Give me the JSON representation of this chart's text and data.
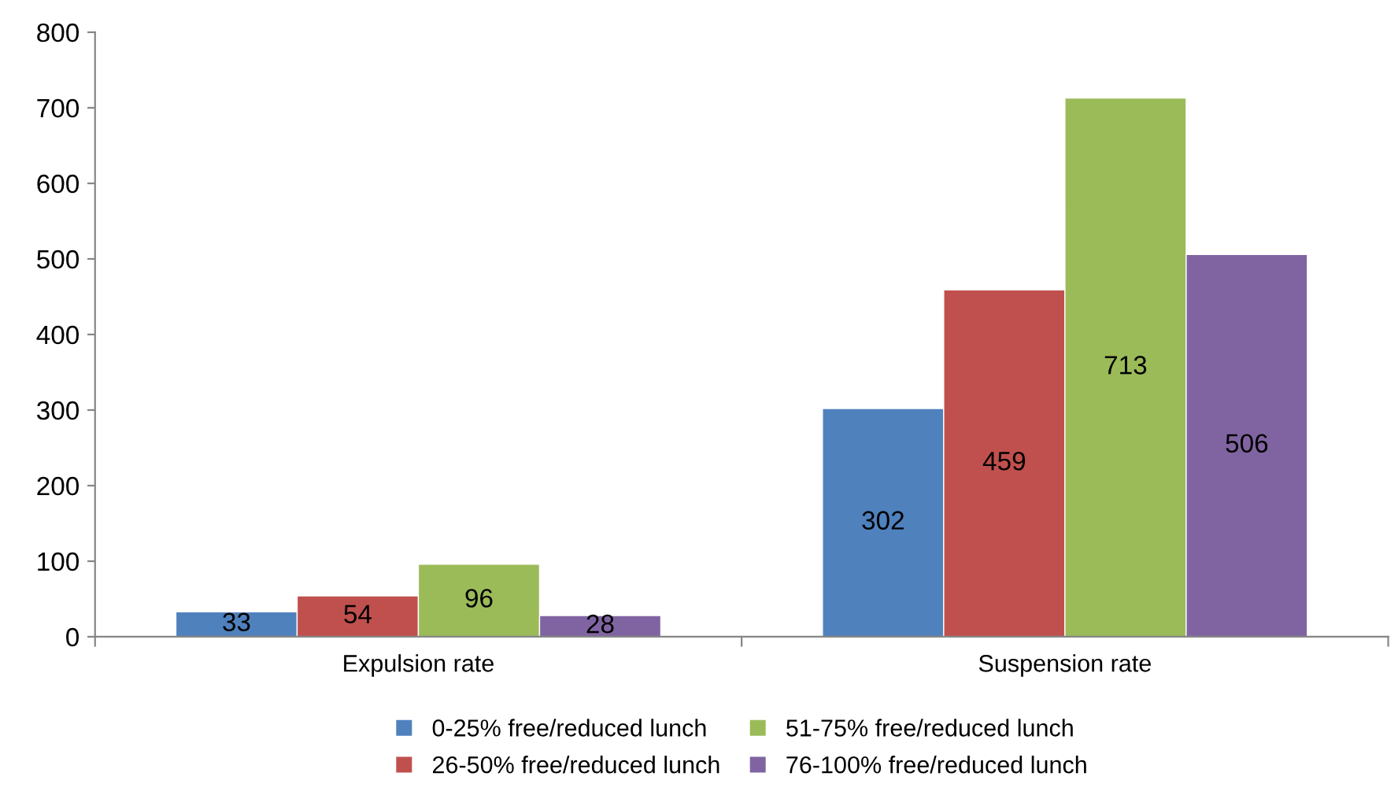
{
  "chart_data": {
    "type": "bar",
    "categories": [
      "Expulsion rate",
      "Suspension rate"
    ],
    "series": [
      {
        "name": "0-25% free/reduced lunch",
        "color": "#4f81bd",
        "values": [
          33,
          302
        ]
      },
      {
        "name": "26-50% free/reduced lunch",
        "color": "#c0504d",
        "values": [
          54,
          459
        ]
      },
      {
        "name": "51-75% free/reduced lunch",
        "color": "#9bbb59",
        "values": [
          96,
          713
        ]
      },
      {
        "name": "76-100% free/reduced lunch",
        "color": "#8064a2",
        "values": [
          28,
          506
        ]
      }
    ],
    "ylim": [
      0,
      800
    ],
    "yticks": [
      0,
      100,
      200,
      300,
      400,
      500,
      600,
      700,
      800
    ],
    "data_labels": true,
    "grid": false,
    "legend": "bottom"
  }
}
